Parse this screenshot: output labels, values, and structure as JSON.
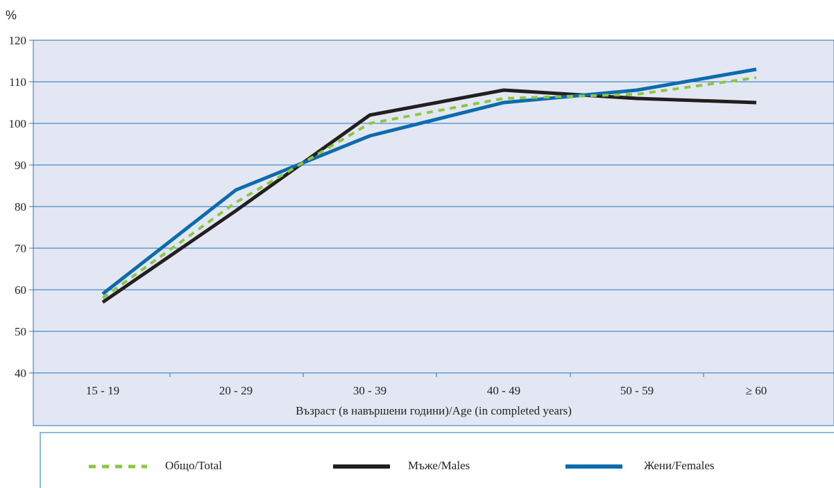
{
  "chart_data": {
    "type": "line",
    "unit_label": "%",
    "xlabel": "Възраст (в навършени години)/Age (in completed years)",
    "ylabel": "",
    "categories": [
      "15 - 19",
      "20 - 29",
      "30 - 39",
      "40 - 49",
      "50 - 59",
      "≥ 60"
    ],
    "ylim": [
      40,
      120
    ],
    "yticks": [
      40,
      50,
      60,
      70,
      80,
      90,
      100,
      110,
      120
    ],
    "grid": true,
    "legend_position": "bottom",
    "series": [
      {
        "name": "Общо/Total",
        "values": [
          58,
          81,
          100,
          106,
          107,
          111
        ],
        "color": "#8cc63f",
        "style": "dashed"
      },
      {
        "name": "Мъже/Males",
        "values": [
          57,
          79,
          102,
          108,
          106,
          105
        ],
        "color": "#231f20",
        "style": "solid"
      },
      {
        "name": "Жени/Females",
        "values": [
          59,
          84,
          97,
          105,
          108,
          113
        ],
        "color": "#0a6cad",
        "style": "solid"
      }
    ]
  },
  "colors": {
    "plot_background": "#e3e7f3",
    "gridline": "#1f74b8",
    "frame": "#1f74b8"
  }
}
